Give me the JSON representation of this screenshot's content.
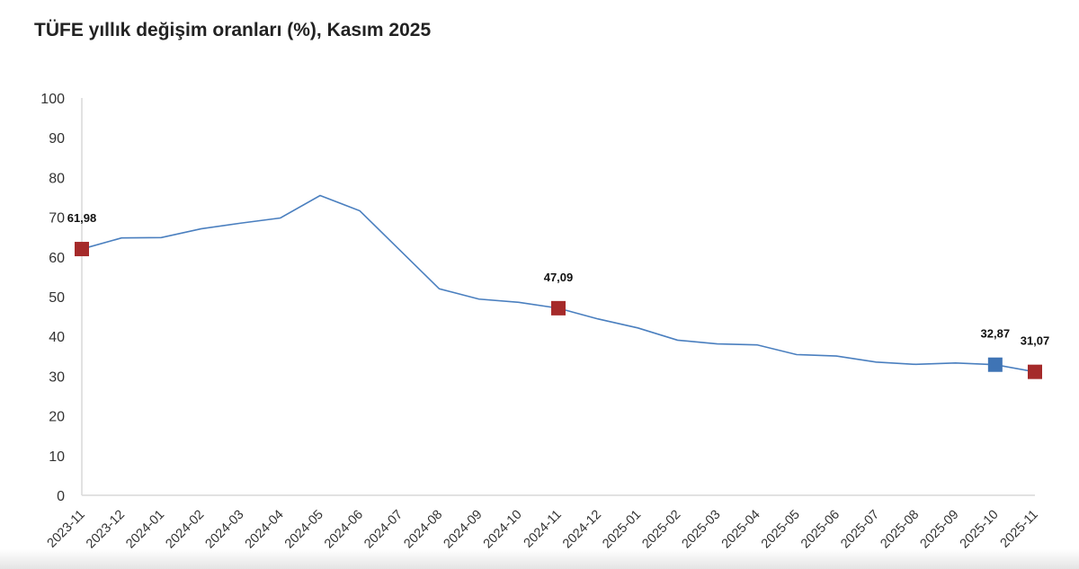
{
  "chart_data": {
    "type": "line",
    "title": "TÜFE yıllık değişim oranları (%), Kasım 2025",
    "xlabel": "",
    "ylabel": "",
    "ylim": [
      0,
      100
    ],
    "yticks": [
      0,
      10,
      20,
      30,
      40,
      50,
      60,
      70,
      80,
      90,
      100
    ],
    "grid": false,
    "categories": [
      "2023-11",
      "2023-12",
      "2024-01",
      "2024-02",
      "2024-03",
      "2024-04",
      "2024-05",
      "2024-06",
      "2024-07",
      "2024-08",
      "2024-09",
      "2024-10",
      "2024-11",
      "2024-12",
      "2025-01",
      "2025-02",
      "2025-03",
      "2025-04",
      "2025-05",
      "2025-06",
      "2025-07",
      "2025-08",
      "2025-09",
      "2025-10",
      "2025-11"
    ],
    "values": [
      61.98,
      64.77,
      64.86,
      67.07,
      68.5,
      69.8,
      75.45,
      71.6,
      61.78,
      51.97,
      49.38,
      48.58,
      47.09,
      44.38,
      42.12,
      39.05,
      38.1,
      37.86,
      35.41,
      35.05,
      33.52,
      32.95,
      33.29,
      32.87,
      31.07
    ],
    "line_color": "#4a7fbf",
    "highlighted_points": [
      {
        "category": "2023-11",
        "label": "61,98",
        "color": "#a52a2a"
      },
      {
        "category": "2024-11",
        "label": "47,09",
        "color": "#a52a2a"
      },
      {
        "category": "2025-10",
        "label": "32,87",
        "color": "#3f74b5"
      },
      {
        "category": "2025-11",
        "label": "31,07",
        "color": "#a52a2a"
      }
    ]
  }
}
